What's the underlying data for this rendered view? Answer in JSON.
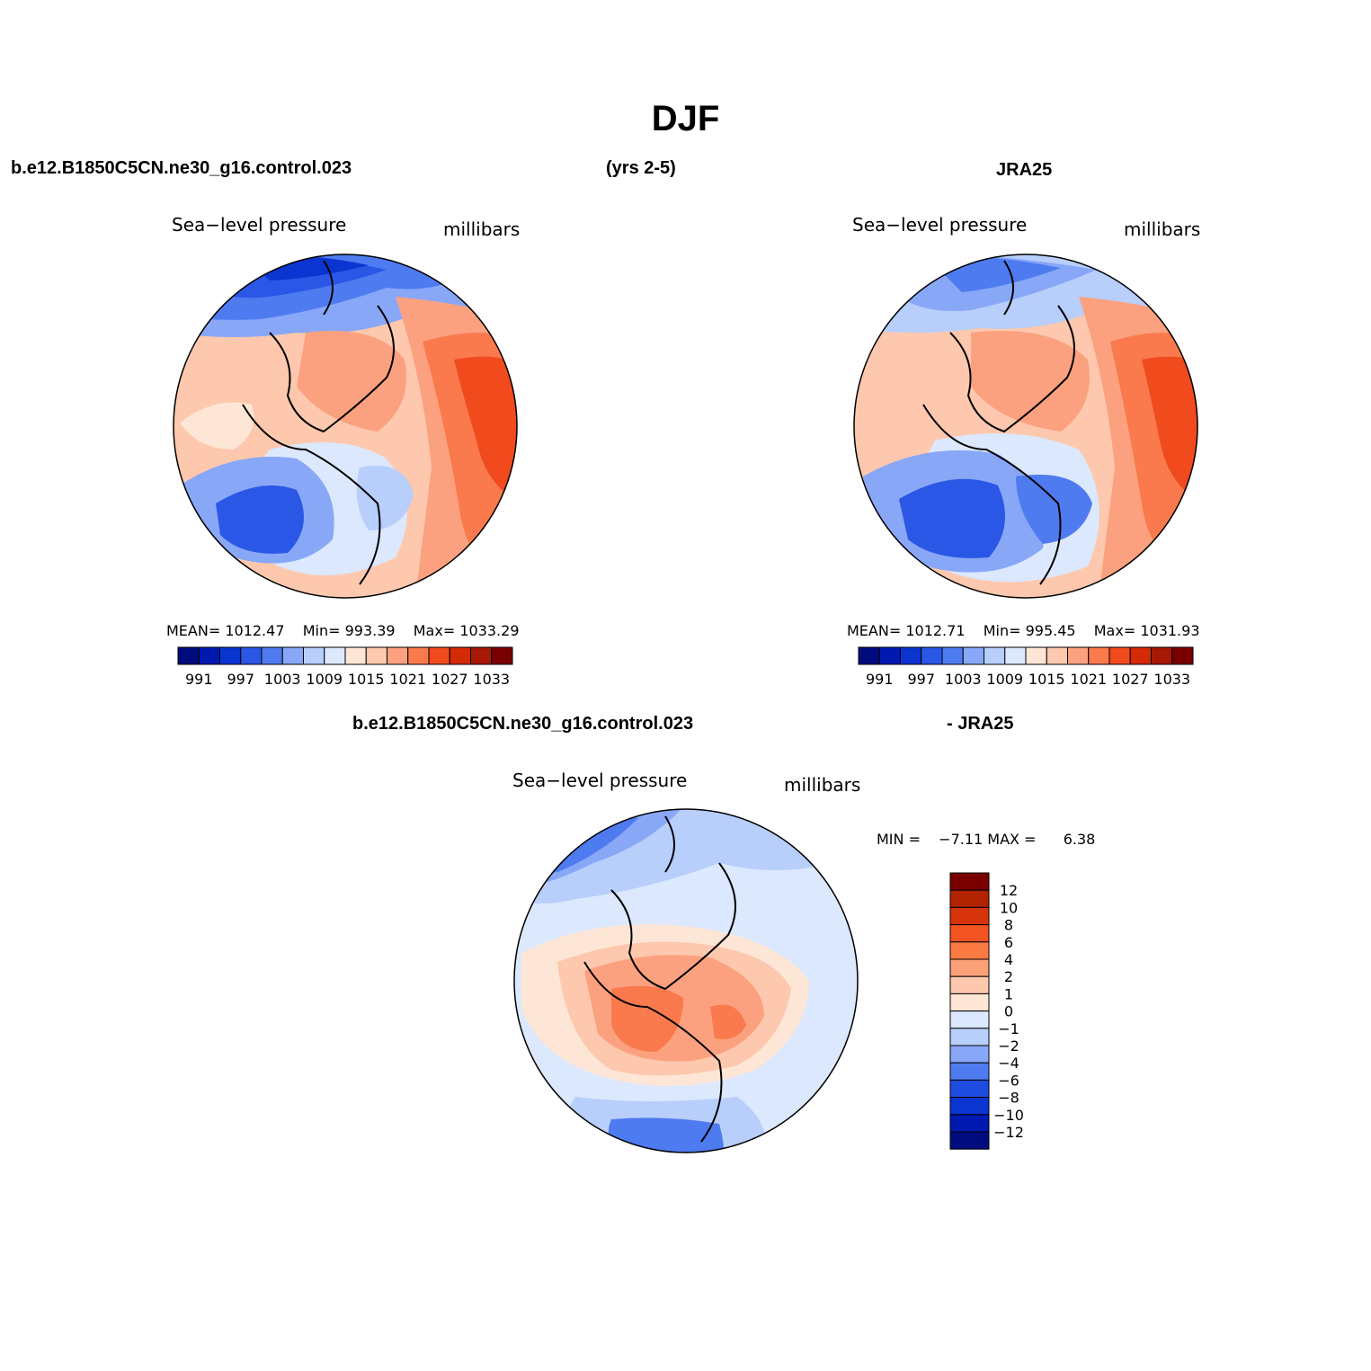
{
  "main_title": "DJF",
  "case_name": "b.e12.B1850C5CN.ne30_g16.control.023",
  "years": "(yrs 2-5)",
  "obs_name": "JRA25",
  "diff_title_left": "b.e12.B1850C5CN.ne30_g16.control.023",
  "diff_title_right": "- JRA25",
  "panels": [
    {
      "variable": "Sea−level pressure",
      "units": "millibars",
      "mean_label": "MEAN=",
      "mean": "1012.47",
      "min_label": "Min=",
      "min": "993.39",
      "max_label": "Max=",
      "max": "1033.29"
    },
    {
      "variable": "Sea−level pressure",
      "units": "millibars",
      "mean_label": "MEAN=",
      "mean": "1012.71",
      "min_label": "Min=",
      "min": "995.45",
      "max_label": "Max=",
      "max": "1031.93"
    }
  ],
  "diff_panel": {
    "variable": "Sea−level pressure",
    "units": "millibars",
    "min_label": "MIN =",
    "min": "−7.11",
    "max_label": "MAX =",
    "max": "6.38"
  },
  "abs_colorbar": {
    "colors": [
      "#000c7d",
      "#0019b1",
      "#0a35d0",
      "#2a57e6",
      "#4f7bf0",
      "#88a7f7",
      "#b8cefb",
      "#dce8fd",
      "#fee6d6",
      "#fdc8ad",
      "#fca17f",
      "#fa7a4d",
      "#f04a1d",
      "#d42a06",
      "#a81806",
      "#7a0000"
    ],
    "labels": [
      "991",
      "997",
      "1003",
      "1009",
      "1015",
      "1021",
      "1027",
      "1033"
    ]
  },
  "diff_colorbar": {
    "colors": [
      "#7a0000",
      "#b12200",
      "#d8340b",
      "#f45421",
      "#fb7a44",
      "#fca178",
      "#fdc8ad",
      "#fee6d6",
      "#dce8fd",
      "#b8cefb",
      "#88a7f7",
      "#4f7bf0",
      "#1f4ce0",
      "#0a35d0",
      "#0019b1",
      "#000c7d"
    ],
    "labels": [
      "12",
      "10",
      "8",
      "6",
      "4",
      "2",
      "1",
      "0",
      "−1",
      "−2",
      "−4",
      "−6",
      "−8",
      "−10",
      "−12"
    ]
  }
}
